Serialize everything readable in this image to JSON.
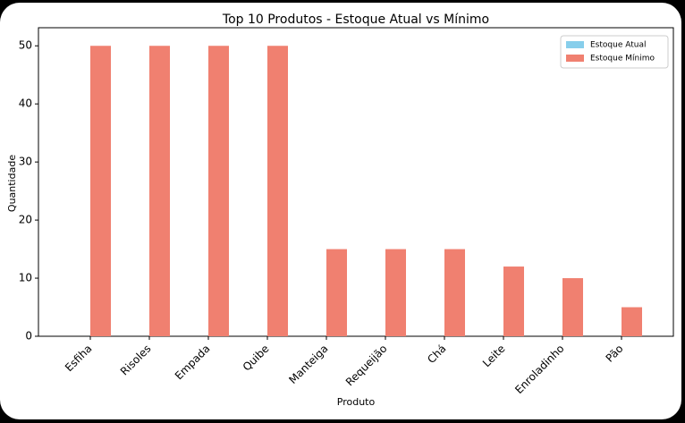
{
  "chart_data": {
    "type": "bar",
    "title": "Top 10 Produtos - Estoque Atual vs Mínimo",
    "x_label": "Produto",
    "y_label": "Quantidade",
    "categories": [
      "Esfiha",
      "Risoles",
      "Empada",
      "Quibe",
      "Manteiga",
      "Requeijão",
      "Chá",
      "Leite",
      "Enroladinho",
      "Pão"
    ],
    "series": [
      {
        "name": "Estoque Atual",
        "color": "#87ceeb",
        "values": [
          0,
          0,
          0,
          0,
          0,
          0,
          0,
          0,
          0,
          0
        ]
      },
      {
        "name": "Estoque Mínimo",
        "color": "#f08070",
        "values": [
          50,
          50,
          50,
          50,
          15,
          15,
          15,
          12,
          10,
          5
        ]
      }
    ],
    "ylim": [
      0,
      52.5
    ],
    "yticks": [
      0,
      10,
      20,
      30,
      40,
      50
    ],
    "legend": "upper right"
  }
}
